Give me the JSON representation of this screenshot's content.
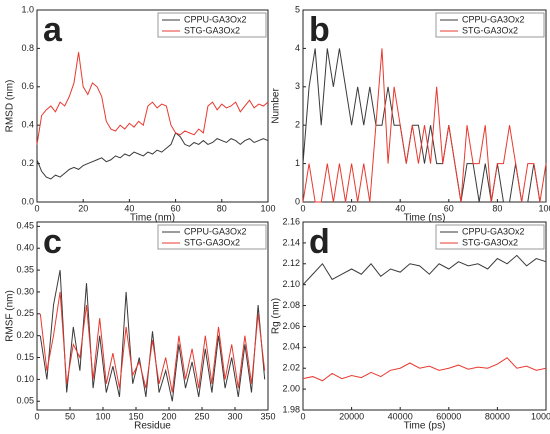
{
  "chart_data": [
    {
      "type": "line",
      "title": "a",
      "xlabel": "Time (nm)",
      "ylabel": "RMSD (nm)",
      "x": [
        0,
        2,
        4,
        6,
        8,
        10,
        12,
        14,
        16,
        18,
        20,
        22,
        24,
        26,
        28,
        30,
        32,
        34,
        36,
        38,
        40,
        42,
        44,
        46,
        48,
        50,
        52,
        54,
        56,
        58,
        60,
        62,
        64,
        66,
        68,
        70,
        72,
        74,
        76,
        78,
        80,
        82,
        84,
        86,
        88,
        90,
        92,
        94,
        96,
        98,
        100
      ],
      "series": [
        {
          "name": "CPPU-GA3Ox2",
          "color": "#3a3a3a",
          "values": [
            0.22,
            0.16,
            0.13,
            0.12,
            0.14,
            0.13,
            0.15,
            0.17,
            0.18,
            0.17,
            0.19,
            0.2,
            0.21,
            0.22,
            0.23,
            0.21,
            0.22,
            0.24,
            0.23,
            0.25,
            0.24,
            0.26,
            0.25,
            0.24,
            0.26,
            0.25,
            0.27,
            0.26,
            0.28,
            0.3,
            0.36,
            0.34,
            0.3,
            0.29,
            0.31,
            0.3,
            0.32,
            0.3,
            0.31,
            0.33,
            0.32,
            0.31,
            0.33,
            0.32,
            0.3,
            0.32,
            0.33,
            0.31,
            0.32,
            0.33,
            0.32
          ]
        },
        {
          "name": "STG-GA3Ox2",
          "color": "#e8392f",
          "values": [
            0.3,
            0.45,
            0.48,
            0.5,
            0.47,
            0.52,
            0.5,
            0.55,
            0.62,
            0.78,
            0.6,
            0.56,
            0.62,
            0.6,
            0.55,
            0.42,
            0.38,
            0.37,
            0.4,
            0.38,
            0.41,
            0.39,
            0.42,
            0.4,
            0.5,
            0.52,
            0.49,
            0.51,
            0.5,
            0.4,
            0.36,
            0.35,
            0.37,
            0.36,
            0.35,
            0.38,
            0.36,
            0.5,
            0.52,
            0.48,
            0.51,
            0.49,
            0.5,
            0.52,
            0.47,
            0.5,
            0.53,
            0.49,
            0.51,
            0.5,
            0.52
          ]
        }
      ],
      "xlim": [
        0,
        100
      ],
      "xticks": [
        0,
        20,
        40,
        60,
        80,
        100
      ],
      "ylim": [
        0,
        1
      ],
      "yticks": [
        {
          "value": 0,
          "label": "0.0"
        },
        0.2,
        0.4,
        0.6,
        0.8,
        {
          "value": 1,
          "label": "1.0"
        }
      ]
    },
    {
      "type": "line",
      "title": "b",
      "xlabel": "Time (ns)",
      "ylabel": "Number",
      "x": [
        0,
        2.5,
        5,
        7.5,
        10,
        12.5,
        15,
        17.5,
        20,
        22.5,
        25,
        27.5,
        30,
        32.5,
        35,
        37.5,
        40,
        42.5,
        45,
        47.5,
        50,
        52.5,
        55,
        57.5,
        60,
        62.5,
        65,
        67.5,
        70,
        72.5,
        75,
        77.5,
        80,
        82.5,
        85,
        87.5,
        90,
        92.5,
        95,
        97.5,
        100
      ],
      "series": [
        {
          "name": "CPPU-GA3Ox2",
          "color": "#3a3a3a",
          "values": [
            1,
            3,
            4,
            2,
            4,
            3,
            4,
            3,
            2,
            3,
            2,
            3,
            2,
            2,
            3,
            2,
            2,
            1,
            2,
            2,
            1,
            2,
            1,
            1,
            2,
            1,
            0,
            1,
            1,
            0,
            1,
            0,
            1,
            0,
            0,
            1,
            0,
            0,
            1,
            0,
            0
          ]
        },
        {
          "name": "STG-GA3Ox2",
          "color": "#e8392f",
          "values": [
            0,
            1,
            0,
            0,
            1,
            0,
            1,
            0,
            1,
            0,
            1,
            0,
            2,
            4,
            1,
            3,
            2,
            1,
            2,
            1,
            2,
            1,
            3,
            1,
            2,
            1,
            0,
            2,
            1,
            1,
            2,
            0,
            1,
            1,
            2,
            1,
            0,
            1,
            1,
            0,
            1
          ]
        }
      ],
      "xlim": [
        0,
        100
      ],
      "xticks": [
        0,
        20,
        40,
        60,
        80,
        100
      ],
      "ylim": [
        0,
        5
      ],
      "yticks": [
        0,
        1,
        2,
        3,
        4,
        5
      ]
    },
    {
      "type": "line",
      "title": "c",
      "xlabel": "Residue",
      "ylabel": "RMSF (nm)",
      "x": [
        5,
        15,
        25,
        35,
        45,
        55,
        65,
        75,
        85,
        95,
        105,
        115,
        125,
        135,
        145,
        155,
        165,
        175,
        185,
        195,
        205,
        215,
        225,
        235,
        245,
        255,
        265,
        275,
        285,
        295,
        305,
        315,
        325,
        335,
        345
      ],
      "series": [
        {
          "name": "CPPU-GA3Ox2",
          "color": "#3a3a3a",
          "values": [
            0.2,
            0.1,
            0.27,
            0.35,
            0.07,
            0.22,
            0.12,
            0.32,
            0.08,
            0.2,
            0.07,
            0.13,
            0.06,
            0.3,
            0.09,
            0.15,
            0.06,
            0.21,
            0.07,
            0.12,
            0.05,
            0.18,
            0.08,
            0.14,
            0.06,
            0.17,
            0.07,
            0.2,
            0.08,
            0.15,
            0.06,
            0.18,
            0.07,
            0.27,
            0.1
          ]
        },
        {
          "name": "STG-GA3Ox2",
          "color": "#e8392f",
          "values": [
            0.25,
            0.12,
            0.2,
            0.3,
            0.09,
            0.18,
            0.15,
            0.27,
            0.1,
            0.24,
            0.09,
            0.16,
            0.08,
            0.22,
            0.11,
            0.14,
            0.08,
            0.19,
            0.09,
            0.15,
            0.07,
            0.2,
            0.1,
            0.17,
            0.08,
            0.2,
            0.09,
            0.22,
            0.1,
            0.18,
            0.08,
            0.2,
            0.09,
            0.25,
            0.12
          ]
        }
      ],
      "xlim": [
        0,
        350
      ],
      "xticks": [
        0,
        50,
        100,
        150,
        200,
        250,
        300,
        350
      ],
      "ylim": [
        0.03,
        0.46
      ],
      "yticks": [
        0.05,
        {
          "value": 0.1,
          "label": "0.10"
        },
        0.15,
        {
          "value": 0.2,
          "label": "0.20"
        },
        0.25,
        {
          "value": 0.3,
          "label": "0.30"
        },
        0.35,
        {
          "value": 0.4,
          "label": "0.40"
        },
        0.45
      ]
    },
    {
      "type": "line",
      "title": "d",
      "xlabel": "Time (ps)",
      "ylabel": "Rg (nm)",
      "x": [
        0,
        4000,
        8000,
        12000,
        16000,
        20000,
        24000,
        28000,
        32000,
        36000,
        40000,
        44000,
        48000,
        52000,
        56000,
        60000,
        64000,
        68000,
        72000,
        76000,
        80000,
        84000,
        88000,
        92000,
        96000,
        100000
      ],
      "series": [
        {
          "name": "CPPU-GA3Ox2",
          "color": "#3a3a3a",
          "values": [
            2.1,
            2.11,
            2.12,
            2.105,
            2.11,
            2.115,
            2.11,
            2.12,
            2.108,
            2.115,
            2.112,
            2.12,
            2.118,
            2.11,
            2.12,
            2.115,
            2.122,
            2.118,
            2.12,
            2.115,
            2.125,
            2.12,
            2.128,
            2.118,
            2.125,
            2.122
          ]
        },
        {
          "name": "STG-GA3Ox2",
          "color": "#e8392f",
          "values": [
            2.01,
            2.012,
            2.008,
            2.015,
            2.01,
            2.013,
            2.011,
            2.016,
            2.012,
            2.018,
            2.02,
            2.025,
            2.02,
            2.022,
            2.018,
            2.02,
            2.023,
            2.019,
            2.021,
            2.02,
            2.024,
            2.03,
            2.02,
            2.022,
            2.018,
            2.02
          ]
        }
      ],
      "xlim": [
        0,
        100000
      ],
      "xticks": [
        0,
        20000,
        40000,
        60000,
        80000,
        100000
      ],
      "ylim": [
        1.98,
        2.16
      ],
      "yticks": [
        1.98,
        {
          "value": 2,
          "label": "2.00"
        },
        2.02,
        2.04,
        2.06,
        2.08,
        {
          "value": 2.1,
          "label": "2.10"
        },
        2.12,
        2.14,
        2.16
      ]
    }
  ]
}
